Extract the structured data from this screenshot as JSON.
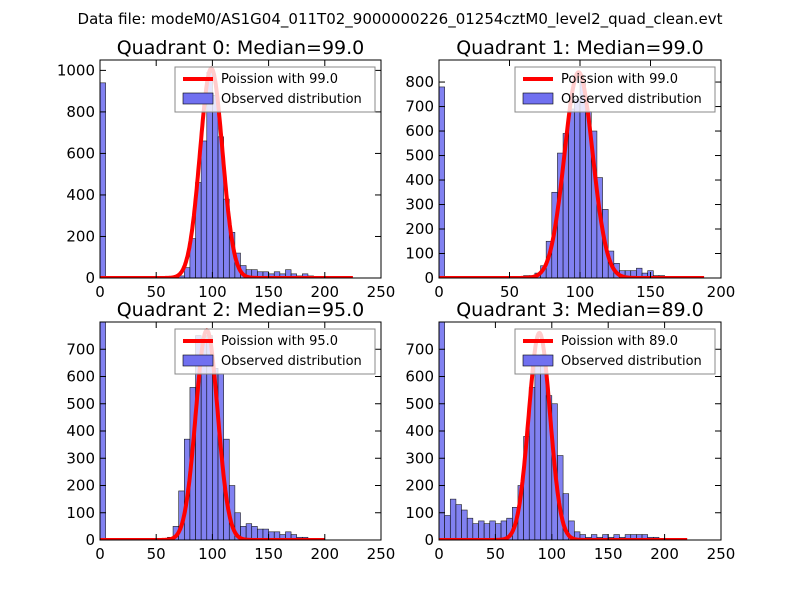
{
  "figure_title": "Data file: modeM0/AS1G04_011T02_9000000226_01254cztM0_level2_quad_clean.evt",
  "colors": {
    "bar": "#7070f0",
    "fit": "#ff0000"
  },
  "chart_data": [
    {
      "type": "bar",
      "title": "Quadrant 0: Median=99.0",
      "xlim": [
        0,
        250
      ],
      "ylim": [
        0,
        1050
      ],
      "xticks": [
        0,
        50,
        100,
        150,
        200,
        250
      ],
      "yticks": [
        0,
        200,
        400,
        600,
        800,
        1000
      ],
      "bin_width": 5,
      "bins": [
        [
          0,
          940
        ],
        [
          70,
          10
        ],
        [
          75,
          50
        ],
        [
          80,
          190
        ],
        [
          85,
          460
        ],
        [
          90,
          660
        ],
        [
          95,
          990
        ],
        [
          100,
          880
        ],
        [
          105,
          680
        ],
        [
          110,
          380
        ],
        [
          115,
          220
        ],
        [
          120,
          120
        ],
        [
          125,
          60
        ],
        [
          130,
          40
        ],
        [
          135,
          40
        ],
        [
          140,
          30
        ],
        [
          145,
          30
        ],
        [
          150,
          20
        ],
        [
          155,
          30
        ],
        [
          160,
          20
        ],
        [
          165,
          40
        ],
        [
          170,
          20
        ],
        [
          175,
          10
        ],
        [
          180,
          20
        ],
        [
          185,
          10
        ],
        [
          190,
          5
        ]
      ],
      "fit": {
        "label": "Poission with 99.0",
        "mean": 99.0,
        "peak": 1010,
        "x_range": [
          0,
          225
        ]
      },
      "legend": {
        "fit": "Poission with 99.0",
        "hist": "Observed distribution"
      }
    },
    {
      "type": "bar",
      "title": "Quadrant 1: Median=99.0",
      "xlim": [
        0,
        200
      ],
      "ylim": [
        0,
        890
      ],
      "xticks": [
        0,
        50,
        100,
        150,
        200
      ],
      "yticks": [
        0,
        100,
        200,
        300,
        400,
        500,
        600,
        700,
        800
      ],
      "bin_width": 4,
      "bins": [
        [
          0,
          780
        ],
        [
          60,
          10
        ],
        [
          64,
          10
        ],
        [
          68,
          20
        ],
        [
          72,
          50
        ],
        [
          76,
          150
        ],
        [
          80,
          350
        ],
        [
          84,
          510
        ],
        [
          88,
          590
        ],
        [
          92,
          690
        ],
        [
          96,
          730
        ],
        [
          100,
          810
        ],
        [
          104,
          680
        ],
        [
          108,
          600
        ],
        [
          112,
          410
        ],
        [
          116,
          280
        ],
        [
          120,
          110
        ],
        [
          124,
          60
        ],
        [
          128,
          30
        ],
        [
          132,
          30
        ],
        [
          136,
          30
        ],
        [
          140,
          40
        ],
        [
          144,
          20
        ],
        [
          148,
          30
        ],
        [
          152,
          10
        ],
        [
          156,
          10
        ],
        [
          160,
          5
        ]
      ],
      "fit": {
        "label": "Poission with 99.0",
        "mean": 99.0,
        "peak": 840,
        "x_range": [
          0,
          188
        ]
      },
      "legend": {
        "fit": "Poission with 99.0",
        "hist": "Observed distribution"
      }
    },
    {
      "type": "bar",
      "title": "Quadrant 2: Median=95.0",
      "xlim": [
        0,
        250
      ],
      "ylim": [
        0,
        800
      ],
      "xticks": [
        0,
        50,
        100,
        150,
        200,
        250
      ],
      "yticks": [
        0,
        100,
        200,
        300,
        400,
        500,
        600,
        700
      ],
      "bin_width": 5,
      "bins": [
        [
          0,
          800
        ],
        [
          55,
          5
        ],
        [
          60,
          10
        ],
        [
          65,
          50
        ],
        [
          70,
          180
        ],
        [
          75,
          370
        ],
        [
          80,
          560
        ],
        [
          85,
          750
        ],
        [
          90,
          730
        ],
        [
          95,
          750
        ],
        [
          100,
          630
        ],
        [
          105,
          610
        ],
        [
          110,
          370
        ],
        [
          115,
          200
        ],
        [
          120,
          100
        ],
        [
          125,
          50
        ],
        [
          130,
          60
        ],
        [
          135,
          50
        ],
        [
          140,
          40
        ],
        [
          145,
          40
        ],
        [
          150,
          30
        ],
        [
          155,
          30
        ],
        [
          160,
          20
        ],
        [
          165,
          30
        ],
        [
          170,
          20
        ],
        [
          175,
          10
        ],
        [
          180,
          10
        ]
      ],
      "fit": {
        "label": "Poission with 95.0",
        "mean": 95.0,
        "peak": 770,
        "x_range": [
          0,
          200
        ]
      },
      "legend": {
        "fit": "Poission with 95.0",
        "hist": "Observed distribution"
      }
    },
    {
      "type": "bar",
      "title": "Quadrant 3: Median=89.0",
      "xlim": [
        0,
        250
      ],
      "ylim": [
        0,
        800
      ],
      "xticks": [
        0,
        50,
        100,
        150,
        200,
        250
      ],
      "yticks": [
        0,
        100,
        200,
        300,
        400,
        500,
        600,
        700
      ],
      "bin_width": 5,
      "bins": [
        [
          0,
          800
        ],
        [
          5,
          90
        ],
        [
          10,
          150
        ],
        [
          15,
          130
        ],
        [
          20,
          110
        ],
        [
          25,
          80
        ],
        [
          30,
          60
        ],
        [
          35,
          70
        ],
        [
          40,
          60
        ],
        [
          45,
          70
        ],
        [
          50,
          60
        ],
        [
          55,
          70
        ],
        [
          60,
          80
        ],
        [
          65,
          120
        ],
        [
          70,
          200
        ],
        [
          75,
          380
        ],
        [
          80,
          560
        ],
        [
          85,
          640
        ],
        [
          90,
          680
        ],
        [
          95,
          530
        ],
        [
          100,
          500
        ],
        [
          105,
          310
        ],
        [
          110,
          170
        ],
        [
          115,
          70
        ],
        [
          120,
          30
        ],
        [
          125,
          20
        ],
        [
          130,
          10
        ],
        [
          135,
          20
        ],
        [
          140,
          10
        ],
        [
          145,
          20
        ],
        [
          150,
          10
        ],
        [
          155,
          20
        ],
        [
          160,
          10
        ],
        [
          165,
          20
        ],
        [
          170,
          20
        ],
        [
          175,
          20
        ],
        [
          180,
          20
        ],
        [
          185,
          10
        ],
        [
          190,
          10
        ],
        [
          195,
          5
        ]
      ],
      "fit": {
        "label": "Poission with 89.0",
        "mean": 89.0,
        "peak": 760,
        "x_range": [
          0,
          220
        ]
      },
      "legend": {
        "fit": "Poission with 89.0",
        "hist": "Observed distribution"
      }
    }
  ]
}
